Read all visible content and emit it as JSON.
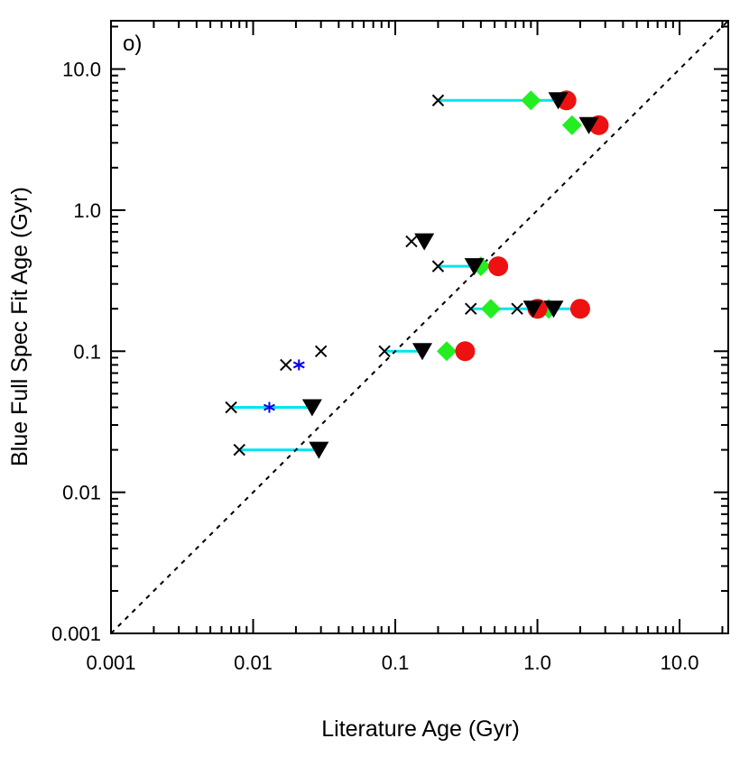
{
  "chart_data": {
    "type": "scatter",
    "title": "",
    "panel_label": "o)",
    "xlabel": "Literature Age (Gyr)",
    "ylabel": "Blue Full Spec Fit Age (Gyr)",
    "xscale": "log",
    "yscale": "log",
    "xlim": [
      0.001,
      22
    ],
    "ylim": [
      0.001,
      22
    ],
    "xticks": [
      {
        "value": 0.001,
        "label": "0.001"
      },
      {
        "value": 0.01,
        "label": "0.01"
      },
      {
        "value": 0.1,
        "label": "0.1"
      },
      {
        "value": 1,
        "label": "1.0"
      },
      {
        "value": 10,
        "label": "10.0"
      }
    ],
    "yticks": [
      {
        "value": 0.001,
        "label": "0.001"
      },
      {
        "value": 0.01,
        "label": "0.01"
      },
      {
        "value": 0.1,
        "label": "0.1"
      },
      {
        "value": 1,
        "label": "1.0"
      },
      {
        "value": 10,
        "label": "10.0"
      }
    ],
    "reference_line": {
      "type": "one-to-one",
      "style": "dashed",
      "color": "#000000"
    },
    "connector_color": "#00e5ee",
    "series": [
      {
        "name": "cross",
        "marker": "x",
        "color": "#000000",
        "points": [
          [
            0.2,
            6.0
          ],
          [
            0.13,
            0.6
          ],
          [
            0.2,
            0.4
          ],
          [
            0.34,
            0.2
          ],
          [
            0.72,
            0.2
          ],
          [
            0.084,
            0.1
          ],
          [
            0.03,
            0.1
          ],
          [
            0.017,
            0.08
          ],
          [
            0.007,
            0.04
          ],
          [
            0.008,
            0.02
          ]
        ]
      },
      {
        "name": "diamond",
        "marker": "diamond",
        "color": "#22ee22",
        "points": [
          [
            0.9,
            6.0
          ],
          [
            1.75,
            4.0
          ],
          [
            0.4,
            0.4
          ],
          [
            0.47,
            0.2
          ],
          [
            1.2,
            0.2
          ],
          [
            0.23,
            0.1
          ]
        ]
      },
      {
        "name": "circle",
        "marker": "circle",
        "color": "#ee1111",
        "points": [
          [
            1.6,
            6.0
          ],
          [
            2.7,
            4.0
          ],
          [
            0.53,
            0.4
          ],
          [
            1.0,
            0.2
          ],
          [
            2.0,
            0.2
          ],
          [
            0.31,
            0.1
          ]
        ]
      },
      {
        "name": "triangle",
        "marker": "triangle-down",
        "color": "#000000",
        "points": [
          [
            1.4,
            6.0
          ],
          [
            2.3,
            4.0
          ],
          [
            0.16,
            0.6
          ],
          [
            0.36,
            0.4
          ],
          [
            0.93,
            0.2
          ],
          [
            1.3,
            0.2
          ],
          [
            0.155,
            0.1
          ],
          [
            0.026,
            0.04
          ],
          [
            0.029,
            0.02
          ]
        ]
      },
      {
        "name": "asterisk",
        "marker": "asterisk",
        "color": "#0000ee",
        "points": [
          [
            0.021,
            0.08
          ],
          [
            0.013,
            0.04
          ]
        ]
      }
    ],
    "connectors": [
      {
        "y": 6.0,
        "x_from": 0.2,
        "x_to": 1.6
      },
      {
        "y": 0.4,
        "x_from": 0.2,
        "x_to": 0.53
      },
      {
        "y": 0.2,
        "x_from": 0.34,
        "x_to": 2.0
      },
      {
        "y": 0.1,
        "x_from": 0.084,
        "x_to": 0.155
      },
      {
        "y": 0.04,
        "x_from": 0.007,
        "x_to": 0.026
      },
      {
        "y": 0.02,
        "x_from": 0.008,
        "x_to": 0.029
      }
    ]
  }
}
